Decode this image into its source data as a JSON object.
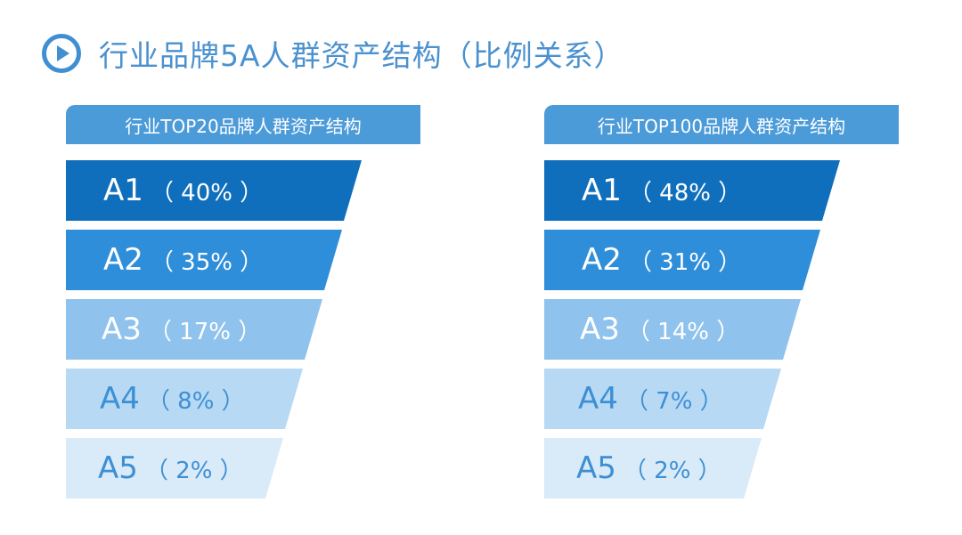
{
  "title": "行业品牌5A人群资产结构（比例关系）",
  "icon": "play-circle-icon",
  "colors": {
    "title": "#4a91cf",
    "header": "#4c9bd9",
    "A1": "#0f6fbc",
    "A2": "#2f8ed9",
    "A3": "#8fc2ec",
    "A4": "#b7d9f4",
    "A5": "#d9eaf8"
  },
  "panels": {
    "left": {
      "header": "行业TOP20品牌人群资产结构",
      "tiers": [
        {
          "code": "A1",
          "pct": "（ 40% ）",
          "value": 40
        },
        {
          "code": "A2",
          "pct": "（ 35% ）",
          "value": 35
        },
        {
          "code": "A3",
          "pct": "（ 17% ）",
          "value": 17
        },
        {
          "code": "A4",
          "pct": "（ 8% ）",
          "value": 8
        },
        {
          "code": "A5",
          "pct": "（ 2% ）",
          "value": 2
        }
      ]
    },
    "right": {
      "header": "行业TOP100品牌人群资产结构",
      "tiers": [
        {
          "code": "A1",
          "pct": "（ 48% ）",
          "value": 48
        },
        {
          "code": "A2",
          "pct": "（ 31% ）",
          "value": 31
        },
        {
          "code": "A3",
          "pct": "（ 14% ）",
          "value": 14
        },
        {
          "code": "A4",
          "pct": "（ 7% ）",
          "value": 7
        },
        {
          "code": "A5",
          "pct": "（ 2% ）",
          "value": 2
        }
      ]
    }
  }
}
